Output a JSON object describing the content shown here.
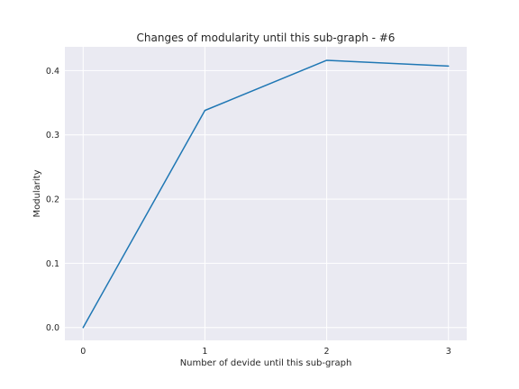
{
  "chart_data": {
    "type": "line",
    "title": "Changes of modularity until this sub-graph - #6",
    "xlabel": "Number of devide until this sub-graph",
    "ylabel": "Modularity",
    "x": [
      0,
      1,
      2,
      3
    ],
    "series": [
      {
        "values": [
          0.0,
          0.338,
          0.416,
          0.407
        ]
      }
    ],
    "xlim": [
      -0.15,
      3.15
    ],
    "ylim": [
      -0.02,
      0.437
    ],
    "xticks": [
      0,
      1,
      2,
      3
    ],
    "yticks": [
      0.0,
      0.1,
      0.2,
      0.3,
      0.4
    ],
    "xtick_labels": [
      "0",
      "1",
      "2",
      "3"
    ],
    "ytick_labels": [
      "0.0",
      "0.1",
      "0.2",
      "0.3",
      "0.4"
    ],
    "grid": true,
    "colors": {
      "background": "#eaeaf2",
      "grid": "#ffffff",
      "line": "#1f77b4"
    }
  }
}
